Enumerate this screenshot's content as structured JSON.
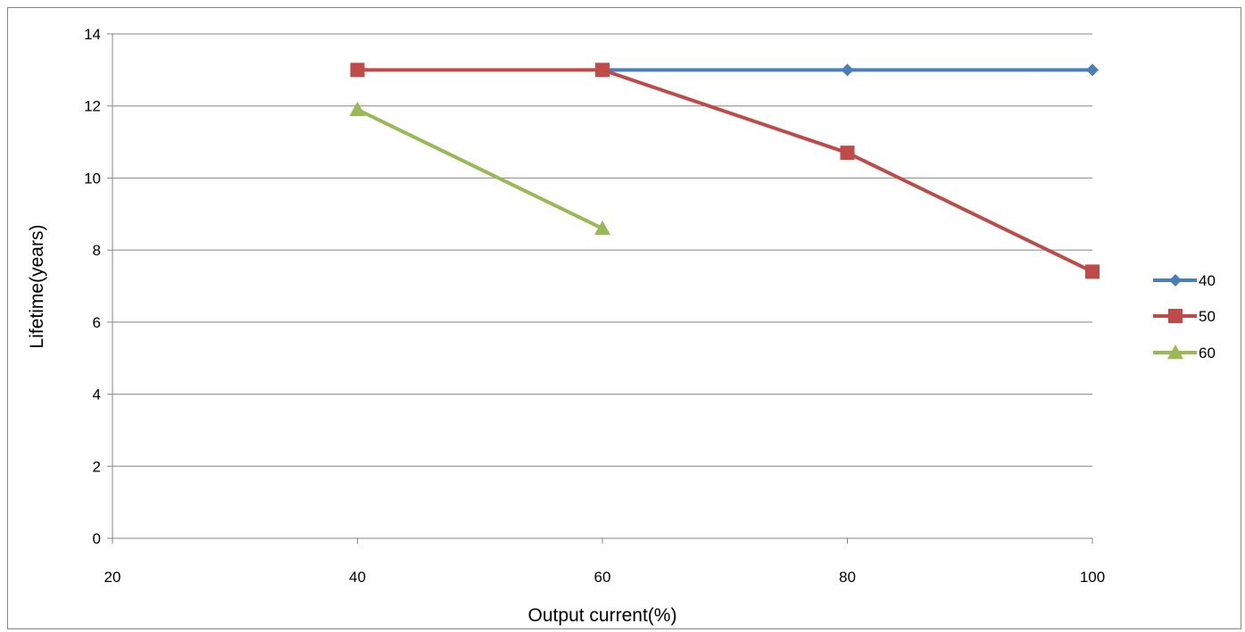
{
  "chart_data": {
    "type": "line",
    "title": "",
    "xlabel": "Output current(%)",
    "ylabel": "Lifetime(years)",
    "xlim": [
      20,
      100
    ],
    "ylim": [
      0,
      14
    ],
    "xticks": [
      20,
      40,
      60,
      80,
      100
    ],
    "yticks": [
      0,
      2,
      4,
      6,
      8,
      10,
      12,
      14
    ],
    "grid": "horizontal",
    "legend_position": "right",
    "series": [
      {
        "name": "40",
        "color": "#4A7EBB",
        "marker": "diamond",
        "x": [
          60,
          80,
          100
        ],
        "y": [
          13,
          13,
          13
        ]
      },
      {
        "name": "50",
        "color": "#BE4B48",
        "marker": "square",
        "x": [
          40,
          60,
          80,
          100
        ],
        "y": [
          13,
          13,
          10.7,
          7.4
        ]
      },
      {
        "name": "60",
        "color": "#98B954",
        "marker": "triangle",
        "x": [
          40,
          60
        ],
        "y": [
          11.9,
          8.6
        ]
      }
    ]
  }
}
